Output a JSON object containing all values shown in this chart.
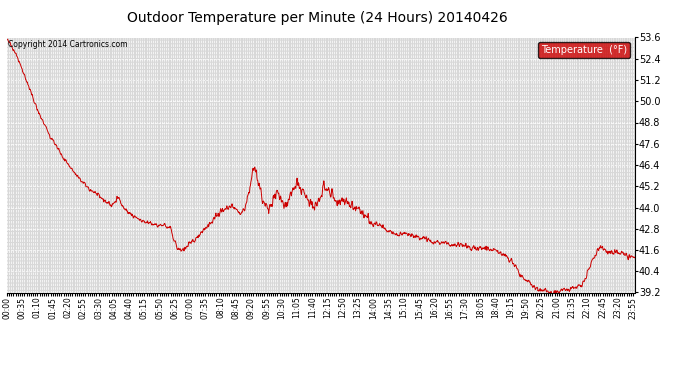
{
  "title": "Outdoor Temperature per Minute (24 Hours) 20140426",
  "copyright_text": "Copyright 2014 Cartronics.com",
  "legend_label": "Temperature  (°F)",
  "legend_bg": "#cc0000",
  "legend_text_color": "#ffffff",
  "line_color": "#cc0000",
  "bg_color": "#ffffff",
  "plot_bg_color": "#d8d8d8",
  "grid_color": "#ffffff",
  "title_color": "#000000",
  "ylim": [
    39.2,
    53.6
  ],
  "yticks": [
    39.2,
    40.4,
    41.6,
    42.8,
    44.0,
    45.2,
    46.4,
    47.6,
    48.8,
    50.0,
    51.2,
    52.4,
    53.6
  ],
  "label_interval_min": 35,
  "tick_interval_min": 5,
  "total_minutes": 1440,
  "waypoints": [
    [
      0,
      53.5
    ],
    [
      20,
      52.8
    ],
    [
      40,
      51.5
    ],
    [
      70,
      49.5
    ],
    [
      100,
      48.0
    ],
    [
      130,
      46.8
    ],
    [
      160,
      45.8
    ],
    [
      190,
      45.0
    ],
    [
      220,
      44.5
    ],
    [
      240,
      44.1
    ],
    [
      255,
      44.6
    ],
    [
      270,
      43.9
    ],
    [
      290,
      43.5
    ],
    [
      310,
      43.2
    ],
    [
      330,
      43.1
    ],
    [
      345,
      43.0
    ],
    [
      360,
      43.0
    ],
    [
      375,
      42.8
    ],
    [
      390,
      41.7
    ],
    [
      400,
      41.6
    ],
    [
      410,
      41.7
    ],
    [
      430,
      42.2
    ],
    [
      460,
      43.0
    ],
    [
      490,
      43.8
    ],
    [
      510,
      44.1
    ],
    [
      525,
      44.0
    ],
    [
      535,
      43.7
    ],
    [
      545,
      44.0
    ],
    [
      558,
      45.2
    ],
    [
      565,
      46.3
    ],
    [
      572,
      46.0
    ],
    [
      578,
      45.3
    ],
    [
      583,
      44.6
    ],
    [
      590,
      44.2
    ],
    [
      600,
      43.9
    ],
    [
      610,
      44.5
    ],
    [
      618,
      44.8
    ],
    [
      625,
      44.5
    ],
    [
      635,
      44.1
    ],
    [
      645,
      44.4
    ],
    [
      655,
      45.0
    ],
    [
      665,
      45.3
    ],
    [
      675,
      45.1
    ],
    [
      685,
      44.7
    ],
    [
      695,
      44.2
    ],
    [
      705,
      43.9
    ],
    [
      718,
      44.6
    ],
    [
      727,
      45.3
    ],
    [
      738,
      45.0
    ],
    [
      748,
      44.6
    ],
    [
      758,
      44.2
    ],
    [
      775,
      44.4
    ],
    [
      795,
      44.1
    ],
    [
      815,
      43.7
    ],
    [
      835,
      43.2
    ],
    [
      855,
      43.0
    ],
    [
      875,
      42.6
    ],
    [
      895,
      42.4
    ],
    [
      915,
      42.5
    ],
    [
      935,
      42.4
    ],
    [
      955,
      42.2
    ],
    [
      975,
      42.1
    ],
    [
      995,
      42.0
    ],
    [
      1015,
      41.9
    ],
    [
      1035,
      41.9
    ],
    [
      1055,
      41.8
    ],
    [
      1075,
      41.7
    ],
    [
      1095,
      41.7
    ],
    [
      1110,
      41.6
    ],
    [
      1125,
      41.5
    ],
    [
      1140,
      41.3
    ],
    [
      1155,
      41.0
    ],
    [
      1165,
      40.7
    ],
    [
      1175,
      40.3
    ],
    [
      1190,
      39.9
    ],
    [
      1205,
      39.6
    ],
    [
      1215,
      39.4
    ],
    [
      1225,
      39.3
    ],
    [
      1235,
      39.25
    ],
    [
      1248,
      39.2
    ],
    [
      1262,
      39.25
    ],
    [
      1275,
      39.3
    ],
    [
      1285,
      39.35
    ],
    [
      1295,
      39.4
    ],
    [
      1305,
      39.5
    ],
    [
      1315,
      39.6
    ],
    [
      1322,
      39.8
    ],
    [
      1330,
      40.2
    ],
    [
      1338,
      40.8
    ],
    [
      1346,
      41.3
    ],
    [
      1355,
      41.7
    ],
    [
      1363,
      41.8
    ],
    [
      1372,
      41.6
    ],
    [
      1380,
      41.4
    ],
    [
      1388,
      41.4
    ],
    [
      1398,
      41.5
    ],
    [
      1408,
      41.4
    ],
    [
      1418,
      41.3
    ],
    [
      1428,
      41.2
    ],
    [
      1439,
      41.2
    ]
  ]
}
